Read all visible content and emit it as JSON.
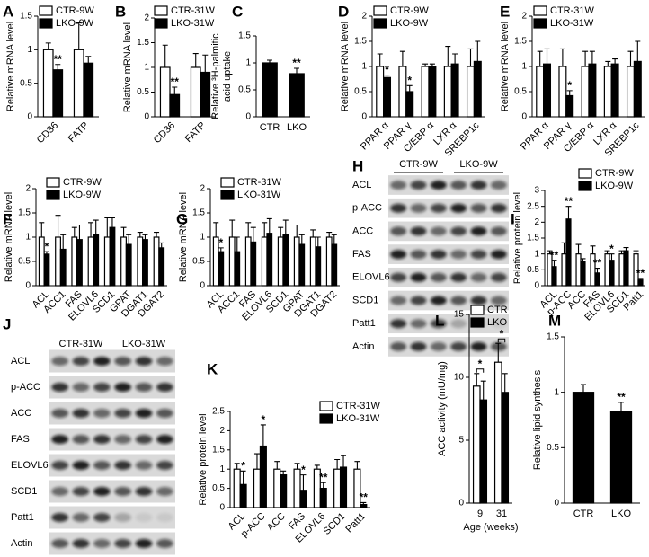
{
  "chart_data": [
    {
      "type": "bar",
      "panel": "A",
      "ylabel": "Relative mRNA level",
      "categories": [
        "CD36",
        "FATP"
      ],
      "ylim": [
        0,
        1.5
      ],
      "yticks": [
        0,
        0.5,
        1,
        1.5
      ],
      "series": [
        {
          "name": "CTR-9W",
          "color": "#ffffff",
          "values": [
            1.0,
            1.0
          ],
          "errors": [
            0.1,
            0.4
          ],
          "marks": [
            null,
            null
          ]
        },
        {
          "name": "LKO-9W",
          "color": "#000000",
          "values": [
            0.7,
            0.8
          ],
          "errors": [
            0.08,
            0.1
          ],
          "marks": [
            "**",
            null
          ]
        }
      ]
    },
    {
      "type": "bar",
      "panel": "B",
      "ylabel": "Relative mRNA level",
      "categories": [
        "CD36",
        "FATP"
      ],
      "ylim": [
        0,
        2
      ],
      "yticks": [
        0,
        0.5,
        1,
        1.5,
        2
      ],
      "series": [
        {
          "name": "CTR-31W",
          "color": "#ffffff",
          "values": [
            1.0,
            1.0
          ],
          "errors": [
            0.45,
            0.28
          ],
          "marks": [
            null,
            null
          ]
        },
        {
          "name": "LKO-31W",
          "color": "#000000",
          "values": [
            0.45,
            0.9
          ],
          "errors": [
            0.15,
            0.35
          ],
          "marks": [
            "**",
            null
          ]
        }
      ]
    },
    {
      "type": "bar",
      "panel": "C",
      "ylabel": [
        "Relative ³H-palmitic",
        "acid uptake"
      ],
      "categories": [
        "CTR",
        "LKO"
      ],
      "ylim": [
        0,
        1.5
      ],
      "yticks": [
        0,
        0.5,
        1,
        1.5
      ],
      "series": [
        {
          "color": "#000000",
          "values": [
            1.0,
            0.8
          ],
          "errors": [
            0.05,
            0.1
          ],
          "marks": [
            null,
            "**"
          ]
        }
      ]
    },
    {
      "type": "bar",
      "panel": "D",
      "ylabel": "Relative mRNA level",
      "categories": [
        "PPAR α",
        "PPAR γ",
        "C/EBP α",
        "LXR α",
        "SREBP1c"
      ],
      "ylim": [
        0,
        2
      ],
      "yticks": [
        0,
        0.5,
        1,
        1.5,
        2
      ],
      "series": [
        {
          "name": "CTR-9W",
          "color": "#ffffff",
          "values": [
            1.0,
            1.0,
            1.0,
            1.0,
            1.0
          ],
          "errors": [
            0.25,
            0.3,
            0.05,
            0.4,
            0.35
          ],
          "marks": [
            null,
            null,
            null,
            null,
            null
          ]
        },
        {
          "name": "LKO-9W",
          "color": "#000000",
          "values": [
            0.78,
            0.5,
            1.0,
            1.05,
            1.1
          ],
          "errors": [
            0.05,
            0.12,
            0.05,
            0.2,
            0.4
          ],
          "marks": [
            "*",
            "*",
            null,
            null,
            null
          ]
        }
      ]
    },
    {
      "type": "bar",
      "panel": "E",
      "ylabel": "Relative mRNA level",
      "categories": [
        "PPAR α",
        "PPAR γ",
        "C/EBP α",
        "LXR α",
        "SREBP1c"
      ],
      "ylim": [
        0,
        2
      ],
      "yticks": [
        0,
        0.5,
        1,
        1.5,
        2
      ],
      "series": [
        {
          "name": "CTR-31W",
          "color": "#ffffff",
          "values": [
            1.0,
            1.0,
            1.0,
            1.0,
            1.0
          ],
          "errors": [
            0.3,
            0.35,
            0.3,
            0.1,
            0.3
          ],
          "marks": [
            null,
            null,
            null,
            null,
            null
          ]
        },
        {
          "name": "LKO-31W",
          "color": "#000000",
          "values": [
            1.05,
            0.42,
            1.05,
            1.05,
            1.1
          ],
          "errors": [
            0.3,
            0.1,
            0.25,
            0.1,
            0.4
          ],
          "marks": [
            null,
            "*",
            null,
            null,
            null
          ]
        }
      ]
    },
    {
      "type": "bar",
      "panel": "F",
      "ylabel": "Relative mRNA level",
      "categories": [
        "ACL",
        "ACC1",
        "FAS",
        "ELOVL6",
        "SCD1",
        "GPAT",
        "DGAT1",
        "DGAT2"
      ],
      "ylim": [
        0,
        2
      ],
      "yticks": [
        0,
        0.5,
        1,
        1.5,
        2
      ],
      "series": [
        {
          "name": "CTR-9W",
          "color": "#ffffff",
          "values": [
            1.0,
            1.0,
            1.0,
            1.0,
            1.0,
            1.0,
            1.0,
            1.0
          ],
          "errors": [
            0.3,
            0.45,
            0.2,
            0.3,
            0.4,
            0.2,
            0.1,
            0.1
          ],
          "marks": [
            null,
            null,
            null,
            null,
            null,
            null,
            null,
            null
          ]
        },
        {
          "name": "LKO-9W",
          "color": "#000000",
          "values": [
            0.65,
            0.75,
            0.95,
            1.05,
            1.2,
            0.85,
            0.95,
            0.78
          ],
          "errors": [
            0.05,
            0.3,
            0.3,
            0.3,
            0.2,
            0.2,
            0.1,
            0.1
          ],
          "marks": [
            "*",
            null,
            null,
            null,
            null,
            null,
            null,
            null
          ]
        }
      ]
    },
    {
      "type": "bar",
      "panel": "G",
      "ylabel": "Relative mRNA level",
      "categories": [
        "ACL",
        "ACC1",
        "FAS",
        "ELOVL6",
        "SCD1",
        "GPAT",
        "DGAT1",
        "DGAT2"
      ],
      "ylim": [
        0,
        2
      ],
      "yticks": [
        0,
        0.5,
        1,
        1.5,
        2
      ],
      "series": [
        {
          "name": "CTR-31W",
          "color": "#ffffff",
          "values": [
            1.0,
            1.0,
            1.0,
            1.0,
            1.0,
            1.0,
            1.0,
            1.0
          ],
          "errors": [
            0.3,
            0.35,
            0.3,
            0.3,
            0.2,
            0.25,
            0.15,
            0.1
          ],
          "marks": [
            null,
            null,
            null,
            null,
            null,
            null,
            null,
            null
          ]
        },
        {
          "name": "LKO-31W",
          "color": "#000000",
          "values": [
            0.7,
            0.7,
            0.9,
            1.08,
            1.05,
            0.85,
            0.8,
            0.85
          ],
          "errors": [
            0.08,
            0.3,
            0.3,
            0.3,
            0.3,
            0.2,
            0.2,
            0.2
          ],
          "marks": [
            "*",
            null,
            null,
            null,
            null,
            null,
            null,
            null
          ]
        }
      ]
    },
    {
      "type": "blot",
      "panel": "H",
      "groups": [
        "CTR-9W",
        "LKO-9W"
      ],
      "rows": [
        "ACL",
        "p-ACC",
        "ACC",
        "FAS",
        "ELOVL6",
        "SCD1",
        "Patt1",
        "Actin"
      ]
    },
    {
      "type": "bar",
      "panel": "I",
      "ylabel": "Relative protein level",
      "categories": [
        "ACL",
        "p-ACC",
        "ACC",
        "FAS",
        "ELOVL6",
        "SCD1",
        "Patt1"
      ],
      "ylim": [
        0,
        3
      ],
      "yticks": [
        0,
        0.5,
        1,
        1.5,
        2,
        2.5,
        3
      ],
      "series": [
        {
          "name": "CTR-9W",
          "color": "#ffffff",
          "values": [
            1.0,
            1.0,
            1.0,
            1.0,
            1.0,
            1.0,
            1.0
          ],
          "errors": [
            0.1,
            0.35,
            0.3,
            0.25,
            0.1,
            0.1,
            0.1
          ],
          "marks": [
            null,
            null,
            null,
            null,
            null,
            null,
            null
          ]
        },
        {
          "name": "LKO-9W",
          "color": "#000000",
          "values": [
            0.6,
            2.1,
            0.75,
            0.4,
            0.8,
            1.1,
            0.18
          ],
          "errors": [
            0.2,
            0.4,
            0.1,
            0.15,
            0.2,
            0.1,
            0.05
          ],
          "marks": [
            "**",
            "**",
            null,
            "**",
            "*",
            null,
            "**"
          ]
        }
      ]
    },
    {
      "type": "blot",
      "panel": "J",
      "groups": [
        "CTR-31W",
        "LKO-31W"
      ],
      "rows": [
        "ACL",
        "p-ACC",
        "ACC",
        "FAS",
        "ELOVL6",
        "SCD1",
        "Patt1",
        "Actin"
      ]
    },
    {
      "type": "bar",
      "panel": "K",
      "ylabel": "Relative protein level",
      "categories": [
        "ACL",
        "p-ACC",
        "ACC",
        "FAS",
        "ELOVL6",
        "SCD1",
        "Patt1"
      ],
      "ylim": [
        0,
        2.5
      ],
      "yticks": [
        0,
        0.5,
        1,
        1.5,
        2,
        2.5
      ],
      "series": [
        {
          "name": "CTR-31W",
          "color": "#ffffff",
          "values": [
            1.0,
            1.0,
            1.0,
            1.0,
            1.0,
            1.0,
            1.0
          ],
          "errors": [
            0.15,
            0.4,
            0.2,
            0.15,
            0.1,
            0.25,
            0.2
          ],
          "marks": [
            null,
            null,
            null,
            null,
            null,
            null,
            null
          ]
        },
        {
          "name": "LKO-31W",
          "color": "#000000",
          "values": [
            0.6,
            1.6,
            0.85,
            0.45,
            0.5,
            1.05,
            0.08
          ],
          "errors": [
            0.35,
            0.55,
            0.1,
            0.4,
            0.15,
            0.3,
            0.05
          ],
          "marks": [
            "*",
            "*",
            null,
            "*",
            "**",
            null,
            "**"
          ]
        }
      ]
    },
    {
      "type": "bar",
      "panel": "L",
      "ylabel": "ACC activity (mU/mg)",
      "xlabel": "Age (weeks)",
      "categories": [
        "9",
        "31"
      ],
      "ylim": [
        0,
        15
      ],
      "yticks": [
        0,
        5,
        10,
        15
      ],
      "brackets": [
        "*",
        "*"
      ],
      "series": [
        {
          "name": "CTR",
          "color": "#ffffff",
          "values": [
            9.3,
            11.2
          ],
          "errors": [
            1.0,
            1.5
          ]
        },
        {
          "name": "LKO",
          "color": "#000000",
          "values": [
            8.2,
            8.8
          ],
          "errors": [
            1.5,
            1.5
          ]
        }
      ]
    },
    {
      "type": "bar",
      "panel": "M",
      "ylabel": "Relative lipid synthesis",
      "categories": [
        "CTR",
        "LKO"
      ],
      "ylim": [
        0,
        1.5
      ],
      "yticks": [
        0,
        0.5,
        1,
        1.5
      ],
      "series": [
        {
          "color": "#000000",
          "values": [
            1.0,
            0.83
          ],
          "errors": [
            0.07,
            0.08
          ],
          "marks": [
            null,
            "**"
          ]
        }
      ]
    }
  ]
}
